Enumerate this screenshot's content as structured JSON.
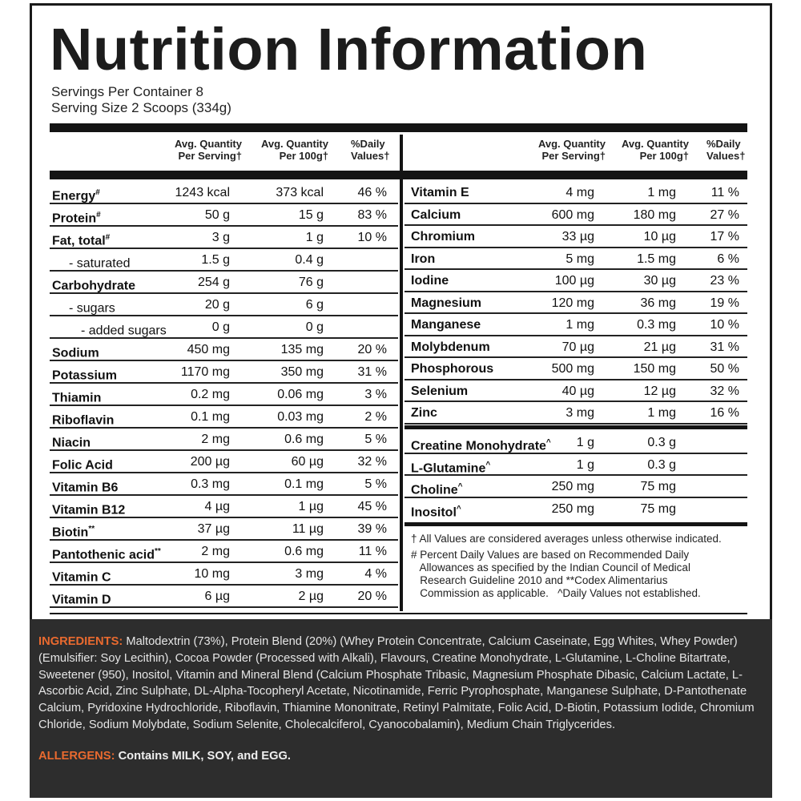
{
  "title": "Nutrition Information",
  "servings_per_container": "Servings Per Container 8",
  "serving_size": "Serving Size 2 Scoops (334g)",
  "headers": {
    "per_serving": [
      "Avg. Quantity",
      "Per Serving†"
    ],
    "per_100g": [
      "Avg. Quantity",
      "Per 100g†"
    ],
    "daily": [
      "%Daily",
      "Values†"
    ]
  },
  "left_rows": [
    {
      "name": "Energy",
      "mark": "#",
      "serving": "1243 kcal",
      "per100": "373 kcal",
      "dv": "46 %",
      "indent": 0
    },
    {
      "name": "Protein",
      "mark": "#",
      "serving": "50 g",
      "per100": "15 g",
      "dv": "83 %",
      "indent": 0
    },
    {
      "name": "Fat, total",
      "mark": "#",
      "serving": "3 g",
      "per100": "1 g",
      "dv": "10 %",
      "indent": 0
    },
    {
      "name": "- saturated",
      "mark": "",
      "serving": "1.5 g",
      "per100": "0.4 g",
      "dv": "",
      "indent": 1
    },
    {
      "name": "Carbohydrate",
      "mark": "",
      "serving": "254 g",
      "per100": "76 g",
      "dv": "",
      "indent": 0
    },
    {
      "name": "- sugars",
      "mark": "",
      "serving": "20 g",
      "per100": "6 g",
      "dv": "",
      "indent": 1
    },
    {
      "name": "- added sugars",
      "mark": "",
      "serving": "0 g",
      "per100": "0 g",
      "dv": "",
      "indent": 2
    },
    {
      "name": "Sodium",
      "mark": "",
      "serving": "450 mg",
      "per100": "135 mg",
      "dv": "20 %",
      "indent": 0
    },
    {
      "name": "Potassium",
      "mark": "",
      "serving": "1170 mg",
      "per100": "350 mg",
      "dv": "31 %",
      "indent": 0
    },
    {
      "name": "Thiamin",
      "mark": "",
      "serving": "0.2 mg",
      "per100": "0.06 mg",
      "dv": "3 %",
      "indent": 0
    },
    {
      "name": "Riboflavin",
      "mark": "",
      "serving": "0.1 mg",
      "per100": "0.03 mg",
      "dv": "2 %",
      "indent": 0
    },
    {
      "name": "Niacin",
      "mark": "",
      "serving": "2 mg",
      "per100": "0.6 mg",
      "dv": "5 %",
      "indent": 0
    },
    {
      "name": "Folic Acid",
      "mark": "",
      "serving": "200 µg",
      "per100": "60 µg",
      "dv": "32 %",
      "indent": 0
    },
    {
      "name": "Vitamin B6",
      "mark": "",
      "serving": "0.3 mg",
      "per100": "0.1 mg",
      "dv": "5 %",
      "indent": 0
    },
    {
      "name": "Vitamin B12",
      "mark": "",
      "serving": "4 µg",
      "per100": "1 µg",
      "dv": "45 %",
      "indent": 0
    },
    {
      "name": "Biotin",
      "mark": "**",
      "serving": "37 µg",
      "per100": "11 µg",
      "dv": "39 %",
      "indent": 0
    },
    {
      "name": "Pantothenic acid",
      "mark": "**",
      "serving": "2 mg",
      "per100": "0.6 mg",
      "dv": "11 %",
      "indent": 0
    },
    {
      "name": "Vitamin C",
      "mark": "",
      "serving": "10 mg",
      "per100": "3 mg",
      "dv": "4 %",
      "indent": 0
    },
    {
      "name": "Vitamin D",
      "mark": "",
      "serving": "6 µg",
      "per100": "2 µg",
      "dv": "20 %",
      "indent": 0
    }
  ],
  "right_rows": [
    {
      "name": "Vitamin E",
      "mark": "",
      "serving": "4 mg",
      "per100": "1 mg",
      "dv": "11 %"
    },
    {
      "name": "Calcium",
      "mark": "",
      "serving": "600 mg",
      "per100": "180 mg",
      "dv": "27 %"
    },
    {
      "name": "Chromium",
      "mark": "",
      "serving": "33 µg",
      "per100": "10 µg",
      "dv": "17 %"
    },
    {
      "name": "Iron",
      "mark": "",
      "serving": "5 mg",
      "per100": "1.5 mg",
      "dv": "6 %"
    },
    {
      "name": "Iodine",
      "mark": "",
      "serving": "100 µg",
      "per100": "30 µg",
      "dv": "23 %"
    },
    {
      "name": "Magnesium",
      "mark": "",
      "serving": "120 mg",
      "per100": "36 mg",
      "dv": "19 %"
    },
    {
      "name": "Manganese",
      "mark": "",
      "serving": "1 mg",
      "per100": "0.3 mg",
      "dv": "10 %"
    },
    {
      "name": "Molybdenum",
      "mark": "",
      "serving": "70 µg",
      "per100": "21 µg",
      "dv": "31 %"
    },
    {
      "name": "Phosphorous",
      "mark": "",
      "serving": "500 mg",
      "per100": "150 mg",
      "dv": "50 %"
    },
    {
      "name": "Selenium",
      "mark": "",
      "serving": "40 µg",
      "per100": "12 µg",
      "dv": "32 %"
    },
    {
      "name": "Zinc",
      "mark": "",
      "serving": "3 mg",
      "per100": "1 mg",
      "dv": "16 %"
    }
  ],
  "extra_rows": [
    {
      "name": "Creatine Monohydrate",
      "mark": "^",
      "serving": "1 g",
      "per100": "0.3 g"
    },
    {
      "name": "L-Glutamine",
      "mark": "^",
      "serving": "1 g",
      "per100": "0.3 g"
    },
    {
      "name": "Choline",
      "mark": "^",
      "serving": "250 mg",
      "per100": "75 mg"
    },
    {
      "name": "Inositol",
      "mark": "^",
      "serving": "250 mg",
      "per100": "75 mg"
    }
  ],
  "footnotes": [
    "† All Values are considered averages unless otherwise indicated.",
    "# Percent Daily Values are based on Recommended Daily",
    "   Allowances as specified by the Indian Council of Medical",
    "   Research Guideline 2010 and **Codex Alimentarius",
    "   Commission as applicable.   ^Daily Values not established."
  ],
  "ingredients_label": "INGREDIENTS:",
  "ingredients_text": "Maltodextrin (73%), Protein Blend (20%) (Whey Protein Concentrate, Calcium Caseinate, Egg Whites, Whey Powder) (Emulsifier: Soy Lecithin), Cocoa Powder (Processed with Alkali), Flavours, Creatine Monohydrate, L-Glutamine, L-Choline Bitartrate, Sweetener (950), Inositol, Vitamin and Mineral Blend (Calcium Phosphate Tribasic, Magnesium Phosphate Dibasic, Calcium Lactate, L-Ascorbic Acid, Zinc Sulphate, DL-Alpha-Tocopheryl Acetate, Nicotinamide, Ferric Pyrophosphate, Manganese Sulphate, D-Pantothenate Calcium, Pyridoxine Hydrochloride, Riboflavin, Thiamine Mononitrate, Retinyl Palmitate, Folic Acid, D-Biotin, Potassium Iodide, Chromium Chloride, Sodium Molybdate, Sodium Selenite, Cholecalciferol, Cyanocobalamin), Medium Chain Triglycerides.",
  "allergens_label": "ALLERGENS:",
  "allergens_text": "Contains MILK, SOY, and EGG.",
  "colors": {
    "accent": "#e96a2f",
    "panel": "#2d2d2d",
    "ink": "#141414"
  }
}
